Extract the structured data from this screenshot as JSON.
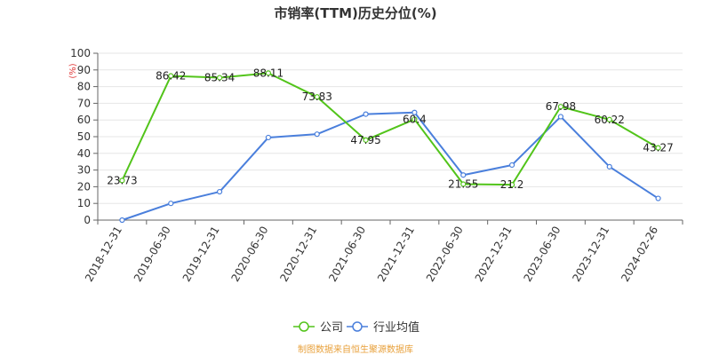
{
  "chart_data": {
    "type": "line",
    "title": "市销率(TTM)历史分位(%)",
    "y_unit": "(%)",
    "ylim": [
      0,
      100
    ],
    "y_ticks": [
      0,
      10,
      20,
      30,
      40,
      50,
      60,
      70,
      80,
      90,
      100
    ],
    "grid": true,
    "legend_position": "bottom",
    "categories": [
      "2018-12-31",
      "2019-06-30",
      "2019-12-31",
      "2020-06-30",
      "2020-12-31",
      "2021-06-30",
      "2021-12-31",
      "2022-06-30",
      "2022-12-31",
      "2023-06-30",
      "2023-12-31",
      "2024-02-26"
    ],
    "series": [
      {
        "name": "公司",
        "color": "#52c41a",
        "values": [
          23.73,
          86.42,
          85.34,
          88.11,
          73.83,
          47.95,
          60.4,
          21.55,
          21.2,
          67.98,
          60.22,
          43.27
        ],
        "labels": [
          "23.73",
          "86.42",
          "85.34",
          "88.11",
          "73.83",
          "47.95",
          "60.4",
          "21.55",
          "21.2",
          "67.98",
          "60.22",
          "43.27"
        ]
      },
      {
        "name": "行业均值",
        "color": "#4a7fdc",
        "values": [
          0,
          10,
          17,
          49.5,
          51.5,
          63.5,
          64.5,
          27,
          33,
          62,
          32,
          13
        ]
      }
    ],
    "source": "制图数据来自恒生聚源数据库"
  }
}
